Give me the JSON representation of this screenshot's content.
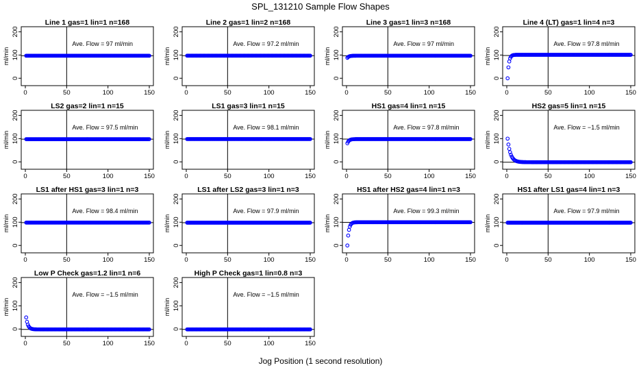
{
  "figure": {
    "title": "SPL_131210  Sample Flow Shapes",
    "xlabel": "Jog Position (1 second resolution)"
  },
  "chart_data": [
    {
      "type": "scatter",
      "title": "Line 1 gas=1 lin=1 n=168",
      "ylabel": "ml/min",
      "annotation": "Ave. Flow =  97  ml/min",
      "xlim": [
        0,
        150
      ],
      "ylim": [
        -20,
        210
      ],
      "xticks": [
        "0",
        "50",
        "100",
        "150"
      ],
      "yticks": [
        "0",
        "100",
        "200"
      ],
      "vline": 50,
      "hline": 97,
      "shape": {
        "kind": "flat",
        "value": 97
      }
    },
    {
      "type": "scatter",
      "title": "Line 2 gas=1 lin=2 n=168",
      "ylabel": "ml/min",
      "annotation": "Ave. Flow =  97.2  ml/min",
      "xlim": [
        0,
        150
      ],
      "ylim": [
        -20,
        210
      ],
      "xticks": [
        "0",
        "50",
        "100",
        "150"
      ],
      "yticks": [
        "0",
        "100",
        "200"
      ],
      "vline": 50,
      "hline": 97.2,
      "shape": {
        "kind": "flat",
        "value": 97.2
      }
    },
    {
      "type": "scatter",
      "title": "Line 3 gas=1 lin=3 n=168",
      "ylabel": "ml/min",
      "annotation": "Ave. Flow =  97  ml/min",
      "xlim": [
        0,
        150
      ],
      "ylim": [
        -20,
        210
      ],
      "xticks": [
        "0",
        "50",
        "100",
        "150"
      ],
      "yticks": [
        "0",
        "100",
        "200"
      ],
      "vline": 50,
      "hline": 97,
      "shape": {
        "kind": "rise",
        "start": 88,
        "value": 97,
        "tau": 2
      }
    },
    {
      "type": "scatter",
      "title": "Line 4 (LT) gas=1 lin=4 n=3",
      "ylabel": "ml/min",
      "annotation": "Ave. Flow =  97.8  ml/min",
      "xlim": [
        0,
        150
      ],
      "ylim": [
        -20,
        210
      ],
      "xticks": [
        "0",
        "50",
        "100",
        "150"
      ],
      "yticks": [
        "0",
        "100",
        "200"
      ],
      "vline": 50,
      "hline": 97.8,
      "shape": {
        "kind": "rise",
        "start": 0,
        "value": 101,
        "tau": 1.6
      }
    },
    {
      "type": "scatter",
      "title": "LS2 gas=2 lin=1 n=15",
      "ylabel": "ml/min",
      "annotation": "Ave. Flow =  97.5  ml/min",
      "xlim": [
        0,
        150
      ],
      "ylim": [
        -20,
        210
      ],
      "xticks": [
        "0",
        "50",
        "100",
        "150"
      ],
      "yticks": [
        "0",
        "100",
        "200"
      ],
      "vline": 50,
      "hline": 97.5,
      "shape": {
        "kind": "flat",
        "value": 97.5
      }
    },
    {
      "type": "scatter",
      "title": "LS1 gas=3 lin=1 n=15",
      "ylabel": "ml/min",
      "annotation": "Ave. Flow =  98.1  ml/min",
      "xlim": [
        0,
        150
      ],
      "ylim": [
        -20,
        210
      ],
      "xticks": [
        "0",
        "50",
        "100",
        "150"
      ],
      "yticks": [
        "0",
        "100",
        "200"
      ],
      "vline": 50,
      "hline": 98.1,
      "shape": {
        "kind": "flat",
        "value": 98.1
      }
    },
    {
      "type": "scatter",
      "title": "HS1 gas=4 lin=1 n=15",
      "ylabel": "ml/min",
      "annotation": "Ave. Flow =  97.8  ml/min",
      "xlim": [
        0,
        150
      ],
      "ylim": [
        -20,
        210
      ],
      "xticks": [
        "0",
        "50",
        "100",
        "150"
      ],
      "yticks": [
        "0",
        "100",
        "200"
      ],
      "vline": 50,
      "hline": 97.8,
      "shape": {
        "kind": "rise",
        "start": 80,
        "value": 98,
        "tau": 2
      }
    },
    {
      "type": "scatter",
      "title": "HS2 gas=5 lin=1 n=15",
      "ylabel": "ml/min",
      "annotation": "Ave. Flow =  −1.5  ml/min",
      "xlim": [
        0,
        150
      ],
      "ylim": [
        -20,
        210
      ],
      "xticks": [
        "0",
        "50",
        "100",
        "150"
      ],
      "yticks": [
        "0",
        "100",
        "200"
      ],
      "vline": 50,
      "hline": -1.5,
      "shape": {
        "kind": "decay",
        "start": 100,
        "value": -1.5,
        "tau": 3.5
      }
    },
    {
      "type": "scatter",
      "title": "LS1 after HS1 gas=3 lin=1 n=3",
      "ylabel": "ml/min",
      "annotation": "Ave. Flow =  98.4  ml/min",
      "xlim": [
        0,
        150
      ],
      "ylim": [
        -20,
        210
      ],
      "xticks": [
        "0",
        "50",
        "100",
        "150"
      ],
      "yticks": [
        "0",
        "100",
        "200"
      ],
      "vline": 50,
      "hline": 98.4,
      "shape": {
        "kind": "flat",
        "value": 98.4
      }
    },
    {
      "type": "scatter",
      "title": "LS1 after LS2 gas=3 lin=1 n=3",
      "ylabel": "ml/min",
      "annotation": "Ave. Flow =  97.9  ml/min",
      "xlim": [
        0,
        150
      ],
      "ylim": [
        -20,
        210
      ],
      "xticks": [
        "0",
        "50",
        "100",
        "150"
      ],
      "yticks": [
        "0",
        "100",
        "200"
      ],
      "vline": 50,
      "hline": 97.9,
      "shape": {
        "kind": "flat",
        "value": 97.9
      }
    },
    {
      "type": "scatter",
      "title": "HS1 after HS2 gas=4 lin=1 n=3",
      "ylabel": "ml/min",
      "annotation": "Ave. Flow =  99.3  ml/min",
      "xlim": [
        0,
        150
      ],
      "ylim": [
        -20,
        210
      ],
      "xticks": [
        "0",
        "50",
        "100",
        "150"
      ],
      "yticks": [
        "0",
        "100",
        "200"
      ],
      "vline": 50,
      "hline": 99.3,
      "shape": {
        "kind": "rise",
        "start": 0,
        "value": 100,
        "tau": 1.8
      }
    },
    {
      "type": "scatter",
      "title": "HS1 after LS1 gas=4 lin=1 n=3",
      "ylabel": "ml/min",
      "annotation": "Ave. Flow =  97.9  ml/min",
      "xlim": [
        0,
        150
      ],
      "ylim": [
        -20,
        210
      ],
      "xticks": [
        "0",
        "50",
        "100",
        "150"
      ],
      "yticks": [
        "0",
        "100",
        "200"
      ],
      "vline": 50,
      "hline": 97.9,
      "shape": {
        "kind": "flat",
        "value": 97.9
      }
    },
    {
      "type": "scatter",
      "title": "Low P Check gas=1.2 lin=1 n=6",
      "ylabel": "ml/min",
      "annotation": "Ave. Flow =  −1.5  ml/min",
      "xlim": [
        0,
        150
      ],
      "ylim": [
        -20,
        210
      ],
      "xticks": [
        "0",
        "50",
        "100",
        "150"
      ],
      "yticks": [
        "0",
        "100",
        "200"
      ],
      "vline": 50,
      "hline": -1.5,
      "shape": {
        "kind": "decay",
        "start": 50,
        "value": -1.5,
        "tau": 2.2
      }
    },
    {
      "type": "scatter",
      "title": "High P Check gas=1 lin=0.8 n=3",
      "ylabel": "ml/min",
      "annotation": "Ave. Flow =  −1.5  ml/min",
      "xlim": [
        0,
        150
      ],
      "ylim": [
        -20,
        210
      ],
      "xticks": [
        "0",
        "50",
        "100",
        "150"
      ],
      "yticks": [
        "0",
        "100",
        "200"
      ],
      "vline": 50,
      "hline": -1.5,
      "shape": {
        "kind": "flat",
        "value": -1.5
      }
    }
  ],
  "colors": {
    "points": "#0000ff",
    "lines": "#000000",
    "axes": "#000000"
  }
}
